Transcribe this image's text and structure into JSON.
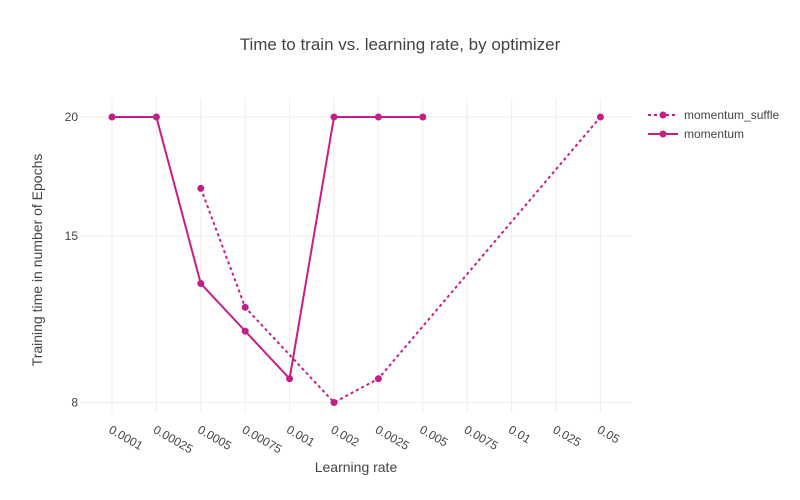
{
  "chart_data": {
    "type": "line",
    "title": "Time to train vs. learning rate, by optimizer",
    "xlabel": "Learning rate",
    "ylabel": "Training time in number of Epochs",
    "categories": [
      "0.0001",
      "0.00025",
      "0.0005",
      "0.00075",
      "0.001",
      "0.002",
      "0.0025",
      "0.005",
      "0.0075",
      "0.01",
      "0.025",
      "0.05"
    ],
    "yticks": [
      8,
      15,
      20
    ],
    "ylim": [
      7.6,
      20.8
    ],
    "grid": true,
    "legend_position": "top-right",
    "series": [
      {
        "name": "momentum_suffle",
        "dash": "dot",
        "color": "#c71e85",
        "points": [
          {
            "x": "0.0005",
            "y": 17
          },
          {
            "x": "0.00075",
            "y": 12
          },
          {
            "x": "0.002",
            "y": 8
          },
          {
            "x": "0.0025",
            "y": 9
          },
          {
            "x": "0.05",
            "y": 20
          }
        ]
      },
      {
        "name": "momentum",
        "dash": "solid",
        "color": "#c71e85",
        "points": [
          {
            "x": "0.0001",
            "y": 20
          },
          {
            "x": "0.00025",
            "y": 20
          },
          {
            "x": "0.0005",
            "y": 13
          },
          {
            "x": "0.00075",
            "y": 11
          },
          {
            "x": "0.001",
            "y": 9
          },
          {
            "x": "0.002",
            "y": 20
          },
          {
            "x": "0.0025",
            "y": 20
          },
          {
            "x": "0.005",
            "y": 20
          }
        ]
      }
    ]
  }
}
